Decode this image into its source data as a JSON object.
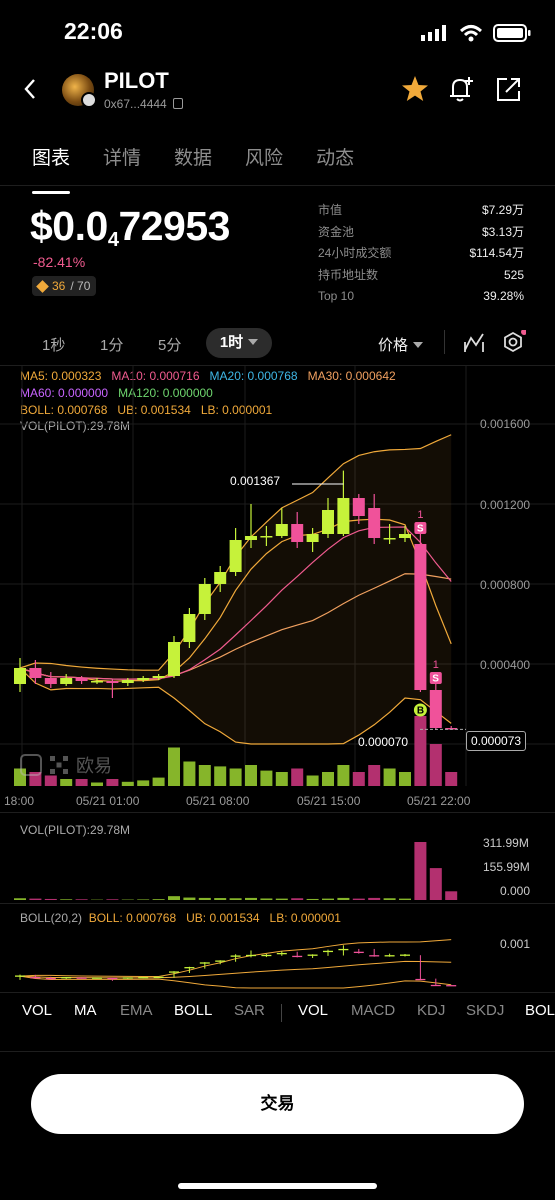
{
  "status_bar": {
    "time": "22:06"
  },
  "header": {
    "ticker": "PILOT",
    "address": "0x67...4444"
  },
  "tabs": [
    {
      "label": "图表",
      "active": true
    },
    {
      "label": "详情",
      "active": false
    },
    {
      "label": "数据",
      "active": false
    },
    {
      "label": "风险",
      "active": false
    },
    {
      "label": "动态",
      "active": false
    }
  ],
  "price": {
    "lead": "$0.0",
    "zeros": "4",
    "digits": "72953",
    "change": "-82.41%",
    "score": "36",
    "score_total": "/ 70"
  },
  "stats": [
    {
      "k": "市值",
      "v": "$7.29万"
    },
    {
      "k": "资金池",
      "v": "$3.13万"
    },
    {
      "k": "24小时成交额",
      "v": "$114.54万"
    },
    {
      "k": "持币地址数",
      "v": "525"
    },
    {
      "k": "Top 10",
      "v": "39.28%"
    }
  ],
  "timeframes": {
    "items": [
      "1秒",
      "1分",
      "5分"
    ],
    "selected": "1时",
    "mode": "价格"
  },
  "indicators": {
    "ma5": "MA5: 0.000323",
    "ma10": "MA10: 0.000716",
    "ma20": "MA20: 0.000768",
    "ma30": "MA30: 0.000642",
    "ma60": "MA60: 0.000000",
    "ma120": "MA120: 0.000000",
    "boll": "BOLL: 0.000768",
    "ub": "UB: 0.001534",
    "lb": "LB: 0.000001",
    "vol": "VOL(PILOT):29.78M"
  },
  "chart_data": {
    "type": "candlestick",
    "y_ticks": [
      "0.001600",
      "0.001200",
      "0.000800",
      "0.000400"
    ],
    "x_ticks": [
      "18:00",
      "05/21 01:00",
      "05/21 08:00",
      "05/21 15:00",
      "05/21 22:00"
    ],
    "annotations": {
      "high": "0.001367",
      "low": "0.000070",
      "last": "0.000073",
      "sell_count": "1",
      "buy_label": "B",
      "sell_label": "S"
    },
    "watermark": "欧易",
    "candles": [
      {
        "o": 0.0003,
        "c": 0.00038,
        "h": 0.00043,
        "l": 0.00026
      },
      {
        "o": 0.00038,
        "c": 0.00033,
        "h": 0.00042,
        "l": 0.0003
      },
      {
        "o": 0.00033,
        "c": 0.0003,
        "h": 0.00036,
        "l": 0.00028
      },
      {
        "o": 0.0003,
        "c": 0.00033,
        "h": 0.00035,
        "l": 0.00029
      },
      {
        "o": 0.00033,
        "c": 0.000315,
        "h": 0.00034,
        "l": 0.0003
      },
      {
        "o": 0.000315,
        "c": 0.000315,
        "h": 0.00033,
        "l": 0.0003
      },
      {
        "o": 0.000315,
        "c": 0.000305,
        "h": 0.000325,
        "l": 0.00023
      },
      {
        "o": 0.000305,
        "c": 0.00032,
        "h": 0.00033,
        "l": 0.00029
      },
      {
        "o": 0.00032,
        "c": 0.00033,
        "h": 0.00034,
        "l": 0.00031
      },
      {
        "o": 0.00033,
        "c": 0.00034,
        "h": 0.00035,
        "l": 0.00032
      },
      {
        "o": 0.00034,
        "c": 0.00051,
        "h": 0.00054,
        "l": 0.00033
      },
      {
        "o": 0.00051,
        "c": 0.00065,
        "h": 0.00068,
        "l": 0.00048
      },
      {
        "o": 0.00065,
        "c": 0.0008,
        "h": 0.00083,
        "l": 0.00062
      },
      {
        "o": 0.0008,
        "c": 0.00086,
        "h": 0.00089,
        "l": 0.00076
      },
      {
        "o": 0.00086,
        "c": 0.00102,
        "h": 0.00108,
        "l": 0.00084
      },
      {
        "o": 0.00102,
        "c": 0.00104,
        "h": 0.0012,
        "l": 0.00098
      },
      {
        "o": 0.00104,
        "c": 0.00104,
        "h": 0.00109,
        "l": 0.00099
      },
      {
        "o": 0.00104,
        "c": 0.0011,
        "h": 0.00118,
        "l": 0.00103
      },
      {
        "o": 0.0011,
        "c": 0.00101,
        "h": 0.00116,
        "l": 0.00098
      },
      {
        "o": 0.00101,
        "c": 0.00105,
        "h": 0.00108,
        "l": 0.00096
      },
      {
        "o": 0.00105,
        "c": 0.00117,
        "h": 0.00123,
        "l": 0.00103
      },
      {
        "o": 0.00105,
        "c": 0.00123,
        "h": 0.001367,
        "l": 0.00104
      },
      {
        "o": 0.00123,
        "c": 0.00114,
        "h": 0.00125,
        "l": 0.0011
      },
      {
        "o": 0.00118,
        "c": 0.00103,
        "h": 0.00125,
        "l": 0.001
      },
      {
        "o": 0.00103,
        "c": 0.00103,
        "h": 0.0011,
        "l": 0.001
      },
      {
        "o": 0.00103,
        "c": 0.00105,
        "h": 0.00109,
        "l": 0.00101
      },
      {
        "o": 0.001,
        "c": 0.00027,
        "h": 0.00105,
        "l": 0.00026
      },
      {
        "o": 0.00027,
        "c": 8e-05,
        "h": 0.0003,
        "l": 7e-05
      },
      {
        "o": 8e-05,
        "c": 7.3e-05,
        "h": 9e-05,
        "l": 7e-05
      }
    ],
    "volume_ticks": [
      "311.99M",
      "155.99M",
      "0.000"
    ],
    "boll_panel": {
      "label": "BOLL(20,2)",
      "boll": "BOLL: 0.000768",
      "ub": "UB: 0.001534",
      "lb": "LB: 0.000001",
      "tick": "0.001"
    }
  },
  "bottom_tabs": [
    "VOL",
    "MA",
    "EMA",
    "BOLL",
    "SAR",
    "VOL",
    "MACD",
    "KDJ",
    "SKDJ",
    "BOLL"
  ],
  "trade_button": "交易",
  "colors": {
    "up": "#c6f23a",
    "down": "#f0529a",
    "ma5": "#f0a93a",
    "ma10": "#f05b8f",
    "ma20": "#3fb7e6",
    "ma30": "#f0a060"
  }
}
